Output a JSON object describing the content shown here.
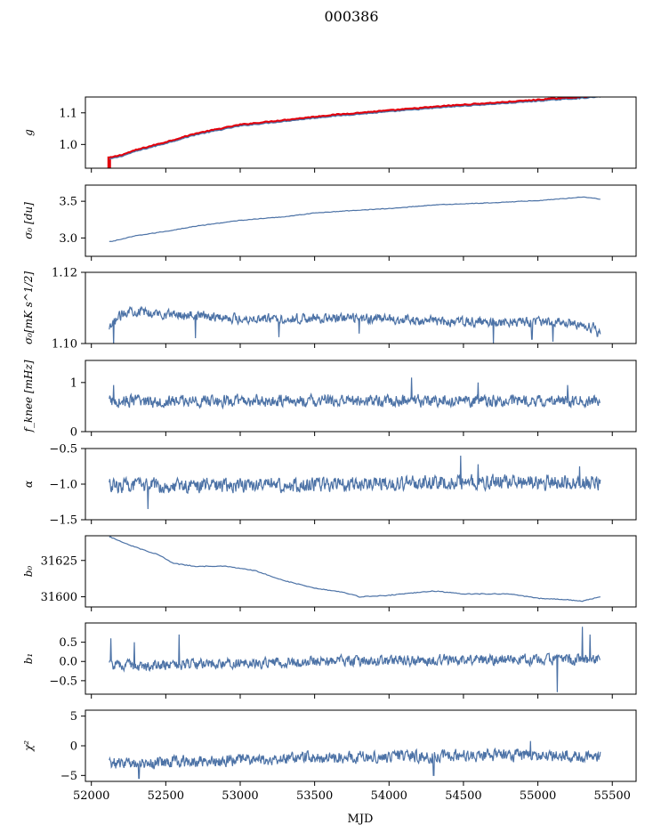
{
  "figure": {
    "title": "000386",
    "xlabel": "MJD"
  },
  "colors": {
    "line": "#4c72a6",
    "red": "#e3000b",
    "axis": "#000000"
  },
  "chart_data": {
    "type": "line",
    "x_range": [
      52120,
      55420
    ],
    "xlim": [
      51960,
      55660
    ],
    "xticks": [
      52000,
      52500,
      53000,
      53500,
      54000,
      54500,
      55000,
      55500
    ],
    "xtick_labels": [
      "52000",
      "52500",
      "53000",
      "53500",
      "54000",
      "54500",
      "55000",
      "55500"
    ],
    "xlabel": "MJD",
    "panels": [
      {
        "name": "g",
        "ylabel": "g",
        "ylim": [
          0.925,
          1.15
        ],
        "yticks": [
          1.0,
          1.1
        ],
        "ytick_labels": [
          "1.0",
          "1.1"
        ],
        "kind": "smooth",
        "knots": [
          [
            52120,
            0.953
          ],
          [
            52200,
            0.962
          ],
          [
            52300,
            0.978
          ],
          [
            52500,
            1.003
          ],
          [
            52700,
            1.03
          ],
          [
            53000,
            1.058
          ],
          [
            53300,
            1.073
          ],
          [
            53600,
            1.088
          ],
          [
            54000,
            1.103
          ],
          [
            54400,
            1.118
          ],
          [
            54800,
            1.13
          ],
          [
            55100,
            1.14
          ],
          [
            55300,
            1.146
          ],
          [
            55420,
            1.15
          ]
        ],
        "noise": 0.0015,
        "overlay": {
          "color": "red",
          "offset": 0.004,
          "spike": {
            "x": 52120,
            "y_from": 0.925,
            "y_to": 0.962
          }
        }
      },
      {
        "name": "sigma0",
        "ylabel": "σ₀ [du]",
        "ylim": [
          2.75,
          3.72
        ],
        "yticks": [
          3.0,
          3.5
        ],
        "ytick_labels": [
          "3.0",
          "3.5"
        ],
        "kind": "smooth",
        "knots": [
          [
            52130,
            2.95
          ],
          [
            52300,
            3.03
          ],
          [
            52500,
            3.09
          ],
          [
            52700,
            3.16
          ],
          [
            53000,
            3.24
          ],
          [
            53300,
            3.29
          ],
          [
            53500,
            3.34
          ],
          [
            53800,
            3.38
          ],
          [
            54000,
            3.4
          ],
          [
            54300,
            3.45
          ],
          [
            54700,
            3.48
          ],
          [
            55000,
            3.51
          ],
          [
            55200,
            3.54
          ],
          [
            55300,
            3.56
          ],
          [
            55420,
            3.53
          ]
        ],
        "noise": 0.004
      },
      {
        "name": "sigma0-mK",
        "ylabel": "σ₀[mK s^1/2]",
        "ylim": [
          1.1,
          1.12
        ],
        "yticks": [
          1.1,
          1.12
        ],
        "ytick_labels": [
          "1.10",
          "1.12"
        ],
        "kind": "noisy",
        "knots": [
          [
            52120,
            1.1035
          ],
          [
            52160,
            1.1065
          ],
          [
            52250,
            1.1095
          ],
          [
            52400,
            1.1085
          ],
          [
            52700,
            1.108
          ],
          [
            53000,
            1.107
          ],
          [
            53300,
            1.107
          ],
          [
            53600,
            1.107
          ],
          [
            54000,
            1.107
          ],
          [
            54400,
            1.106
          ],
          [
            54800,
            1.106
          ],
          [
            55200,
            1.106
          ],
          [
            55420,
            1.104
          ]
        ],
        "noise": 0.0012,
        "dips": [
          [
            52150,
            1.0993
          ],
          [
            52700,
            1.1015
          ],
          [
            53260,
            1.1018
          ],
          [
            53800,
            1.1028
          ],
          [
            54700,
            1.1
          ],
          [
            54960,
            1.1012
          ],
          [
            55100,
            1.1005
          ],
          [
            55400,
            1.102
          ]
        ],
        "clip": true
      },
      {
        "name": "fknee",
        "ylabel": "f_knee [mHz]",
        "ylim": [
          0,
          1.45
        ],
        "yticks": [
          0,
          1
        ],
        "ytick_labels": [
          "0",
          "1"
        ],
        "kind": "noisy",
        "knots": [
          [
            52120,
            0.62
          ],
          [
            55420,
            0.63
          ]
        ],
        "noise": 0.11,
        "spikes": [
          [
            52150,
            0.95
          ],
          [
            54150,
            1.1
          ],
          [
            54600,
            1.0
          ],
          [
            55200,
            0.95
          ]
        ]
      },
      {
        "name": "alpha",
        "ylabel": "α",
        "ylim": [
          -1.5,
          -0.5
        ],
        "yticks": [
          -1.5,
          -1.0,
          -0.5
        ],
        "ytick_labels": [
          "−1.5",
          "−1.0",
          "−0.5"
        ],
        "kind": "noisy",
        "knots": [
          [
            52120,
            -1.02
          ],
          [
            53500,
            -1.01
          ],
          [
            54500,
            -0.97
          ],
          [
            55420,
            -0.98
          ]
        ],
        "noise": 0.09,
        "spikes": [
          [
            52380,
            -1.35
          ],
          [
            54480,
            -0.6
          ],
          [
            54600,
            -0.72
          ],
          [
            55280,
            -0.75
          ]
        ]
      },
      {
        "name": "b0",
        "ylabel": "b₀",
        "ylim": [
          31593,
          31642
        ],
        "yticks": [
          31600,
          31625
        ],
        "ytick_labels": [
          "31600",
          "31625"
        ],
        "kind": "smooth",
        "knots": [
          [
            52130,
            31641
          ],
          [
            52250,
            31636
          ],
          [
            52300,
            31634
          ],
          [
            52450,
            31629
          ],
          [
            52550,
            31623
          ],
          [
            52700,
            31621
          ],
          [
            52900,
            31621
          ],
          [
            53100,
            31618
          ],
          [
            53300,
            31611
          ],
          [
            53500,
            31606
          ],
          [
            53700,
            31603
          ],
          [
            53800,
            31600
          ],
          [
            54000,
            31601
          ],
          [
            54300,
            31604
          ],
          [
            54500,
            31602
          ],
          [
            54800,
            31602
          ],
          [
            55000,
            31599
          ],
          [
            55200,
            31598
          ],
          [
            55300,
            31597
          ],
          [
            55420,
            31600
          ]
        ],
        "noise": 0.25
      },
      {
        "name": "b1",
        "ylabel": "b₁",
        "ylim": [
          -0.85,
          1.0
        ],
        "yticks": [
          -0.5,
          0.0,
          0.5
        ],
        "ytick_labels": [
          "−0.5",
          "0.0",
          "0.5"
        ],
        "kind": "noisy",
        "knots": [
          [
            52120,
            -0.1
          ],
          [
            52500,
            -0.1
          ],
          [
            53000,
            -0.05
          ],
          [
            53500,
            0.0
          ],
          [
            54000,
            0.02
          ],
          [
            54500,
            0.05
          ],
          [
            55000,
            0.05
          ],
          [
            55420,
            0.05
          ]
        ],
        "noise": 0.12,
        "spikes": [
          [
            52130,
            0.6
          ],
          [
            52290,
            0.5
          ],
          [
            52590,
            0.7
          ],
          [
            55130,
            -0.8
          ],
          [
            55300,
            0.9
          ],
          [
            55350,
            0.7
          ]
        ]
      },
      {
        "name": "chi2",
        "ylabel": "χ²",
        "ylim": [
          -6.0,
          6.0
        ],
        "yticks": [
          -5,
          0,
          5
        ],
        "ytick_labels": [
          "−5",
          "0",
          "5"
        ],
        "kind": "noisy",
        "knots": [
          [
            52120,
            -3.0
          ],
          [
            52500,
            -2.8
          ],
          [
            53000,
            -2.4
          ],
          [
            53500,
            -2.0
          ],
          [
            54000,
            -1.8
          ],
          [
            54500,
            -1.7
          ],
          [
            55000,
            -1.6
          ],
          [
            55420,
            -1.7
          ]
        ],
        "noise": 0.9,
        "spikes": [
          [
            52320,
            -5.5
          ],
          [
            54300,
            -5.0
          ],
          [
            54950,
            0.8
          ]
        ]
      }
    ]
  }
}
